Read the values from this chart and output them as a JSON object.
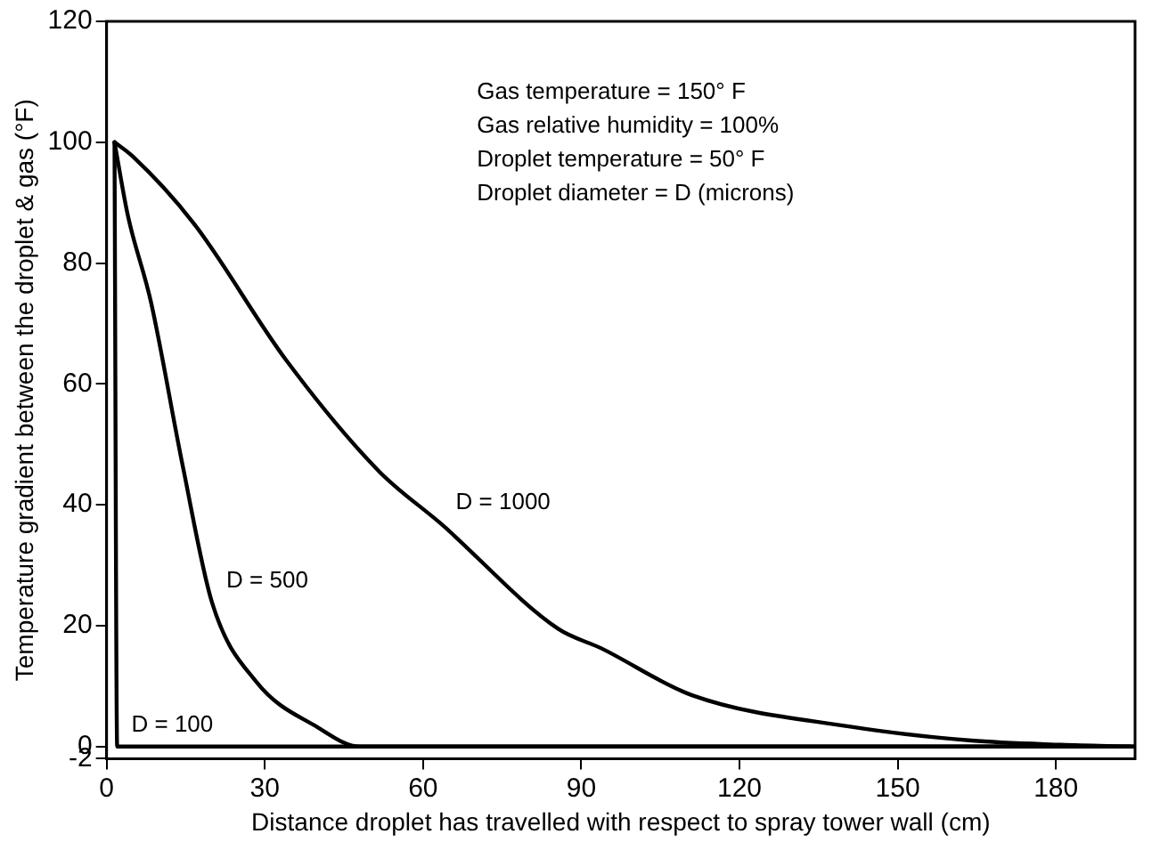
{
  "chart_data": {
    "type": "line",
    "xlabel": "Distance droplet has travelled with respect to spray tower wall (cm)",
    "ylabel": "Temperature gradient between the droplet & gas (°F)",
    "xlim": [
      0,
      195
    ],
    "xticks": [
      0,
      30,
      60,
      90,
      120,
      150,
      180
    ],
    "ylim": [
      -2,
      120
    ],
    "yticks": [
      -2,
      0,
      20,
      40,
      60,
      80,
      100,
      120
    ],
    "grid": false,
    "legend": false,
    "marker": "none",
    "line_style": "solid",
    "series": [
      {
        "name": "D = 100",
        "color": "#000000",
        "x": [
          1.5,
          2,
          195
        ],
        "values": [
          100,
          0,
          0
        ]
      },
      {
        "name": "D = 500",
        "color": "#000000",
        "x": [
          1.5,
          4,
          8.4,
          14.4,
          20,
          28.4,
          40,
          48,
          195
        ],
        "values": [
          100,
          88,
          73.6,
          46.6,
          23.8,
          10.7,
          3.2,
          0,
          0
        ]
      },
      {
        "name": "D = 1000",
        "color": "#000000",
        "x": [
          1.5,
          4.9,
          16.5,
          34,
          51.6,
          63.5,
          85.6,
          93.7,
          111,
          141,
          164,
          181,
          194
        ],
        "values": [
          100,
          97.7,
          86.6,
          64,
          45.6,
          36.8,
          19.5,
          16.3,
          8.5,
          3.3,
          1,
          0.3,
          0
        ]
      }
    ],
    "annotations": [
      "Gas temperature = 150° F",
      "Gas relative humidity = 100%",
      "Droplet temperature = 50° F",
      "Droplet diameter = D (microns)"
    ]
  }
}
